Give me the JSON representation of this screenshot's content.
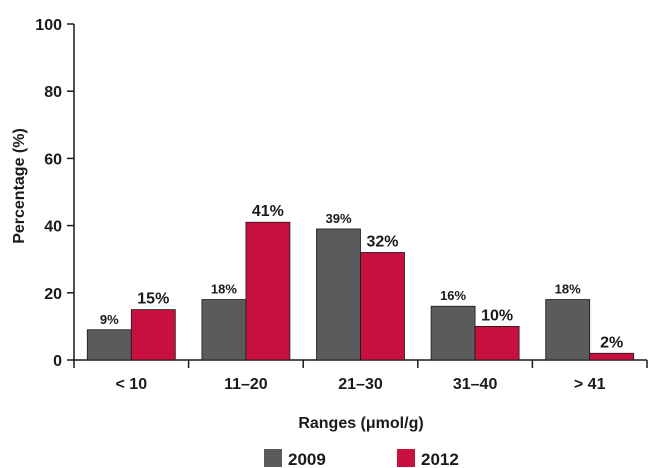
{
  "chart_data": {
    "type": "bar",
    "title": "",
    "xlabel": "Ranges (μmol/g)",
    "ylabel": "Percentage (%)",
    "ylim": [
      0,
      100
    ],
    "yticks": [
      "0",
      "20",
      "40",
      "60",
      "80",
      "100"
    ],
    "categories": [
      "< 10",
      "11–20",
      "21–30",
      "31–40",
      "> 41"
    ],
    "legend_position": "bottom",
    "grid": false,
    "series": [
      {
        "name": "2009",
        "color": "#595b5d",
        "values": [
          9,
          18,
          39,
          16,
          18
        ],
        "labels": [
          "9%",
          "18%",
          "39%",
          "16%",
          "18%"
        ]
      },
      {
        "name": "2012",
        "color": "#c8103e",
        "values": [
          15,
          41,
          32,
          10,
          2
        ],
        "labels": [
          "15%",
          "41%",
          "32%",
          "10%",
          "2%"
        ]
      }
    ]
  }
}
